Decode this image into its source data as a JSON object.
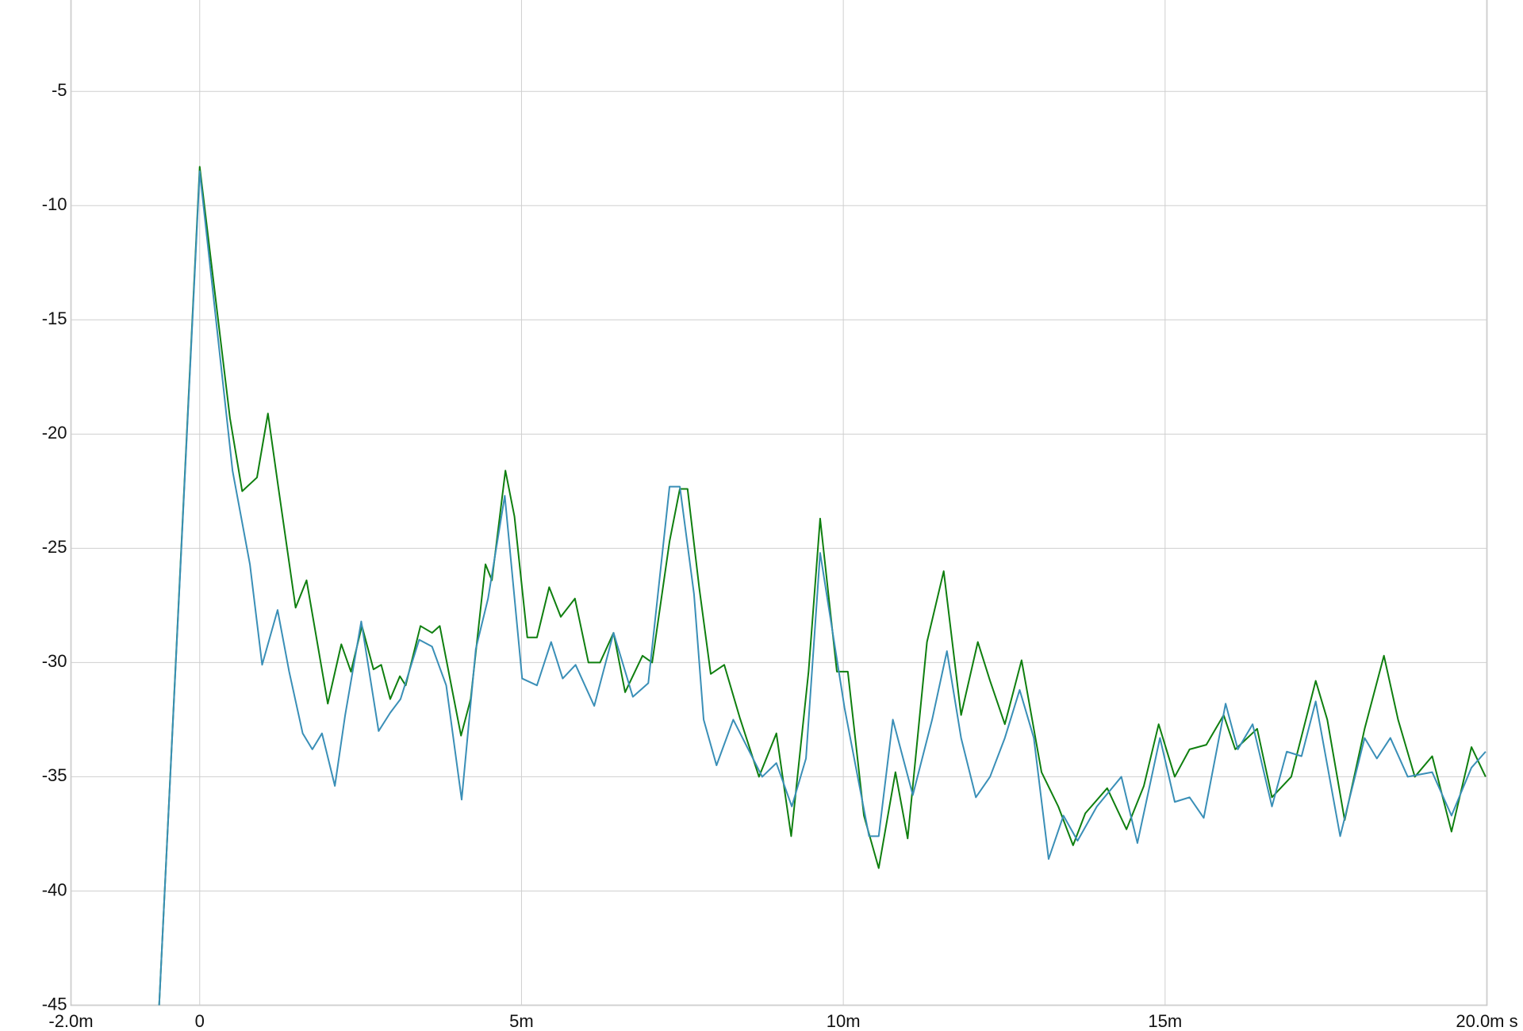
{
  "chart_data": {
    "type": "line",
    "xlim": [
      -2,
      20
    ],
    "ylim": [
      -45,
      -1
    ],
    "xticks": [
      {
        "value": -2,
        "label": "-2.0m"
      },
      0,
      {
        "value": 5,
        "label": "5m"
      },
      {
        "value": 10,
        "label": "10m"
      },
      {
        "value": 15,
        "label": "15m"
      },
      {
        "value": 20,
        "label": "20.0m s"
      }
    ],
    "yticks": [
      -5,
      -10,
      -15,
      -20,
      -25,
      -30,
      -35,
      -40,
      -45
    ],
    "grid": true,
    "series": [
      {
        "color": "#0f7f0f",
        "x": [
          -0.63,
          0,
          0.47,
          0.66,
          0.89,
          1.06,
          1.22,
          1.49,
          1.66,
          1.99,
          2.2,
          2.35,
          2.52,
          2.7,
          2.82,
          2.96,
          3.11,
          3.2,
          3.43,
          3.61,
          3.73,
          4.06,
          4.21,
          4.44,
          4.54,
          4.75,
          4.89,
          5.09,
          5.24,
          5.43,
          5.61,
          5.83,
          6.04,
          6.22,
          6.43,
          6.61,
          6.88,
          7.03,
          7.3,
          7.46,
          7.58,
          7.76,
          7.94,
          8.15,
          8.39,
          8.69,
          8.96,
          9.19,
          9.46,
          9.64,
          9.9,
          10.07,
          10.32,
          10.55,
          10.81,
          11,
          11.3,
          11.56,
          11.83,
          12.09,
          12.28,
          12.51,
          12.77,
          13.08,
          13.34,
          13.57,
          13.76,
          14.1,
          14.4,
          14.67,
          14.9,
          15.15,
          15.38,
          15.64,
          15.91,
          16.09,
          16.43,
          16.66,
          16.96,
          17.34,
          17.52,
          17.79,
          18.1,
          18.4,
          18.62,
          18.88,
          19.15,
          19.45,
          19.76,
          19.98
        ],
        "values": [
          -45,
          -8.3,
          -19.3,
          -22.5,
          -21.9,
          -19.1,
          -22.3,
          -27.6,
          -26.4,
          -31.8,
          -29.2,
          -30.4,
          -28.4,
          -30.3,
          -30.1,
          -31.6,
          -30.6,
          -31,
          -28.4,
          -28.7,
          -28.4,
          -33.2,
          -31.6,
          -25.7,
          -26.4,
          -21.6,
          -23.6,
          -28.9,
          -28.9,
          -26.7,
          -28,
          -27.2,
          -30,
          -30,
          -28.7,
          -31.3,
          -29.7,
          -30,
          -24.7,
          -22.4,
          -22.4,
          -26.7,
          -30.5,
          -30.1,
          -32.4,
          -35,
          -33.1,
          -37.6,
          -30.4,
          -23.7,
          -30.4,
          -30.4,
          -36.7,
          -39,
          -34.8,
          -37.7,
          -29.1,
          -26,
          -32.3,
          -29.1,
          -30.8,
          -32.7,
          -29.9,
          -34.8,
          -36.3,
          -38,
          -36.6,
          -35.5,
          -37.3,
          -35.4,
          -32.7,
          -35,
          -33.8,
          -33.6,
          -32.3,
          -33.8,
          -32.9,
          -35.9,
          -35,
          -30.8,
          -32.5,
          -36.9,
          -32.9,
          -29.7,
          -32.5,
          -35,
          -34.1,
          -37.4,
          -33.7,
          -35
        ]
      },
      {
        "color": "#3a8fb7",
        "x": [
          -0.63,
          0,
          0.51,
          0.78,
          0.97,
          1.21,
          1.39,
          1.6,
          1.75,
          1.9,
          2.1,
          2.26,
          2.51,
          2.78,
          2.96,
          3.12,
          3.41,
          3.61,
          3.83,
          4.07,
          4.29,
          4.48,
          4.74,
          5.01,
          5.24,
          5.46,
          5.64,
          5.84,
          6.13,
          6.43,
          6.73,
          6.97,
          7.3,
          7.46,
          7.68,
          7.83,
          8.03,
          8.29,
          8.74,
          8.96,
          9.2,
          9.42,
          9.64,
          10.02,
          10.4,
          10.55,
          10.77,
          11.08,
          11.38,
          11.61,
          11.83,
          12.06,
          12.28,
          12.51,
          12.74,
          12.96,
          13.19,
          13.42,
          13.64,
          13.94,
          14.32,
          14.57,
          14.92,
          15.15,
          15.38,
          15.6,
          15.94,
          16.13,
          16.36,
          16.66,
          16.89,
          17.12,
          17.34,
          17.72,
          18.1,
          18.29,
          18.5,
          18.77,
          19.15,
          19.45,
          19.76,
          19.98
        ],
        "values": [
          -45,
          -8.5,
          -21.6,
          -25.7,
          -30.1,
          -27.7,
          -30.4,
          -33.1,
          -33.8,
          -33.1,
          -35.4,
          -32.3,
          -28.2,
          -33,
          -32.2,
          -31.6,
          -29,
          -29.3,
          -31,
          -36,
          -29.4,
          -27.2,
          -22.7,
          -30.7,
          -31,
          -29.1,
          -30.7,
          -30.1,
          -31.9,
          -28.7,
          -31.5,
          -30.9,
          -22.3,
          -22.3,
          -27,
          -32.5,
          -34.5,
          -32.5,
          -35,
          -34.4,
          -36.3,
          -34.2,
          -25.2,
          -32,
          -37.6,
          -37.6,
          -32.5,
          -35.8,
          -32.5,
          -29.5,
          -33.3,
          -35.9,
          -35,
          -33.3,
          -31.2,
          -33.3,
          -38.6,
          -36.7,
          -37.8,
          -36.3,
          -35,
          -37.9,
          -33.3,
          -36.1,
          -35.9,
          -36.8,
          -31.8,
          -33.8,
          -32.7,
          -36.3,
          -33.9,
          -34.1,
          -31.7,
          -37.6,
          -33.3,
          -34.2,
          -33.3,
          -35,
          -34.8,
          -36.7,
          -34.6,
          -33.9
        ]
      }
    ]
  }
}
